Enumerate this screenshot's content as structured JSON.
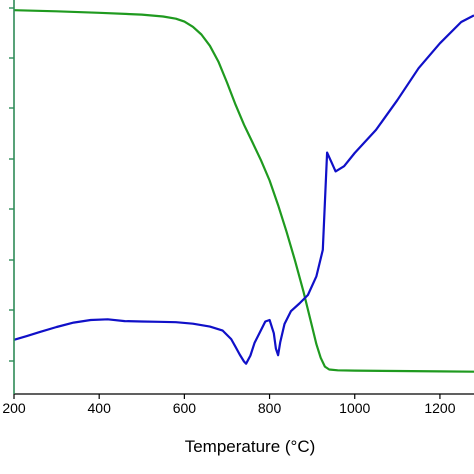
{
  "chart_data": {
    "type": "line",
    "title": "",
    "xlabel": "Temperature (°C)",
    "ylabel": "",
    "xlim": [
      200,
      1280
    ],
    "ylim": [
      0,
      100
    ],
    "x_ticks": [
      200,
      400,
      600,
      800,
      1000,
      1200
    ],
    "left_axis_color": "#2e8b57",
    "grid": false,
    "legend": "none",
    "series": [
      {
        "color": "#1f9a1f",
        "x": [
          200,
          300,
          400,
          500,
          550,
          580,
          600,
          620,
          640,
          660,
          680,
          700,
          720,
          740,
          760,
          780,
          800,
          820,
          840,
          860,
          880,
          900,
          910,
          920,
          930,
          940,
          960,
          1000,
          1100,
          1200,
          1280
        ],
        "y": [
          98.3,
          98.0,
          97.6,
          97.1,
          96.6,
          96.0,
          95.2,
          93.8,
          91.7,
          88.6,
          84.3,
          78.6,
          72.6,
          67.1,
          62.3,
          57.4,
          51.9,
          45.2,
          37.9,
          30.0,
          21.5,
          12.1,
          7.3,
          3.6,
          1.2,
          0.4,
          0.2,
          0.1,
          0.0,
          -0.1,
          -0.2
        ]
      },
      {
        "color": "#1010c8",
        "x": [
          200,
          230,
          260,
          300,
          340,
          380,
          420,
          460,
          500,
          540,
          580,
          620,
          660,
          690,
          710,
          720,
          730,
          740,
          745,
          755,
          765,
          775,
          790,
          800,
          810,
          815,
          820,
          825,
          835,
          850,
          870,
          890,
          910,
          925,
          935,
          945,
          955,
          975,
          1000,
          1050,
          1100,
          1150,
          1200,
          1250,
          1280
        ],
        "y": [
          8.5,
          9.5,
          10.6,
          12.0,
          13.2,
          13.9,
          14.1,
          13.6,
          13.5,
          13.4,
          13.3,
          12.9,
          12.1,
          11.0,
          8.7,
          6.6,
          4.5,
          2.6,
          2.0,
          4.2,
          7.7,
          10.0,
          13.5,
          13.9,
          10.3,
          6.1,
          4.3,
          7.8,
          12.8,
          16.3,
          18.4,
          20.7,
          25.8,
          33.0,
          59.5,
          57.0,
          54.4,
          55.8,
          59.4,
          65.7,
          73.8,
          82.5,
          89.3,
          95.1,
          96.9
        ]
      }
    ]
  }
}
